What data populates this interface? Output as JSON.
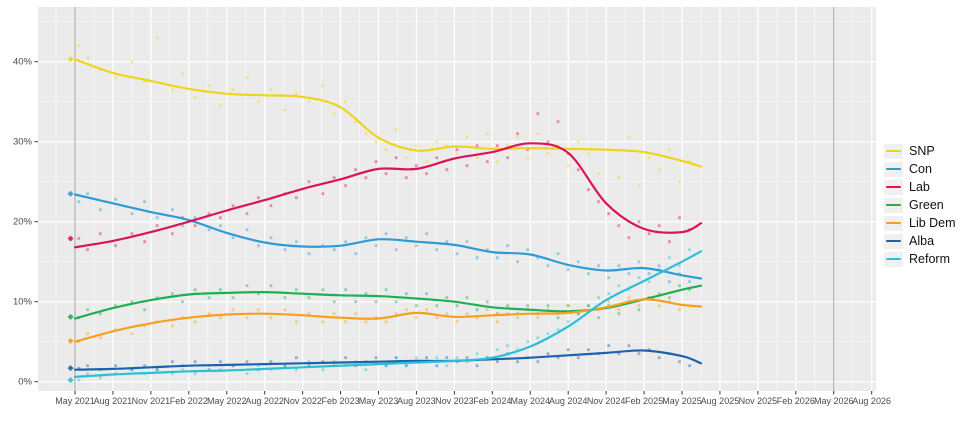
{
  "chart_data": {
    "type": "line+scatter",
    "title": "",
    "description": "Scottish Parliament voting intention poll tracker: scatter of individual polls with smoothed trend lines per party, election results marked May 2021, vertical guides at May 2021 and May 2026 elections",
    "x_axis": {
      "tick_labels": [
        "May 2021",
        "Aug 2021",
        "Nov 2021",
        "Feb 2022",
        "May 2022",
        "Aug 2022",
        "Nov 2022",
        "Feb 2023",
        "May 2023",
        "Aug 2023",
        "Nov 2023",
        "Feb 2024",
        "May 2024",
        "Aug 2024",
        "Nov 2024",
        "Feb 2025",
        "May 2025",
        "Aug 2025",
        "Nov 2025",
        "Feb 2026",
        "May 2026",
        "Aug 2026"
      ],
      "months_per_tick": 3,
      "total_months": 63,
      "grid": true
    },
    "y_axis": {
      "tick_labels": [
        "0%",
        "10%",
        "20%",
        "30%",
        "40%"
      ],
      "tick_values": [
        0,
        10,
        20,
        30,
        40
      ],
      "range_shown": [
        -1.2,
        46.8
      ],
      "grid": true
    },
    "election_vlines_months": [
      0,
      60
    ],
    "election_2021_results": [
      40.3,
      23.5,
      17.9,
      8.1,
      5.1,
      1.7,
      0.2
    ],
    "trend_months": [
      0,
      3,
      6,
      9,
      12,
      15,
      18,
      21,
      24,
      27,
      30,
      33,
      36,
      39,
      42,
      45,
      48,
      49.5
    ],
    "series": [
      {
        "name": "SNP",
        "color": "#EFD41F",
        "trend": [
          40.3,
          38.6,
          37.6,
          36.6,
          36.0,
          35.8,
          35.6,
          34.3,
          30.5,
          28.9,
          29.4,
          29.1,
          29.2,
          29.1,
          29.0,
          28.7,
          27.6,
          26.9
        ]
      },
      {
        "name": "Con",
        "color": "#2E9BD5",
        "trend": [
          23.4,
          22.3,
          21.2,
          20.2,
          18.6,
          17.4,
          16.9,
          17.0,
          17.8,
          17.5,
          17.1,
          16.2,
          15.9,
          14.6,
          13.9,
          14.2,
          13.3,
          12.9
        ]
      },
      {
        "name": "Lab",
        "color": "#DB145A",
        "trend": [
          16.8,
          17.6,
          18.7,
          20.0,
          21.4,
          22.7,
          24.1,
          25.3,
          26.6,
          26.6,
          27.9,
          28.7,
          29.8,
          28.6,
          22.3,
          19.1,
          18.7,
          19.8
        ]
      },
      {
        "name": "Green",
        "color": "#1FAE54",
        "trend": [
          7.9,
          9.2,
          10.2,
          10.9,
          11.1,
          11.2,
          11.0,
          10.8,
          10.7,
          10.4,
          10.0,
          9.3,
          9.0,
          8.8,
          9.2,
          10.3,
          11.5,
          12.0
        ]
      },
      {
        "name": "Lib Dem",
        "color": "#F5A01E",
        "trend": [
          5.0,
          6.3,
          7.3,
          8.0,
          8.4,
          8.5,
          8.3,
          8.0,
          7.9,
          8.6,
          8.1,
          8.3,
          8.5,
          8.6,
          9.3,
          10.3,
          9.6,
          9.4
        ]
      },
      {
        "name": "Alba",
        "color": "#1C63AE",
        "trend": [
          1.5,
          1.6,
          1.8,
          2.0,
          2.1,
          2.2,
          2.3,
          2.4,
          2.5,
          2.6,
          2.6,
          2.8,
          3.0,
          3.3,
          3.6,
          3.9,
          3.2,
          2.3
        ]
      },
      {
        "name": "Reform",
        "color": "#2BC0D4",
        "trend": [
          0.6,
          0.9,
          1.1,
          1.3,
          1.4,
          1.6,
          1.8,
          2.0,
          2.2,
          2.4,
          2.6,
          3.0,
          4.4,
          6.9,
          10.2,
          12.6,
          15.0,
          16.3
        ]
      }
    ],
    "polls": {
      "months": [
        0.3,
        1,
        2,
        3.2,
        4.5,
        5.5,
        6.5,
        7.7,
        8.5,
        9.5,
        10.6,
        11.5,
        12.5,
        13.6,
        14.5,
        15.5,
        16.6,
        17.5,
        18.5,
        19.6,
        20.5,
        21.4,
        22.2,
        23,
        23.8,
        24.6,
        25.4,
        26.2,
        27,
        27.8,
        28.6,
        29.4,
        30.2,
        31,
        31.8,
        32.6,
        33.4,
        34.2,
        35,
        35.8,
        36.6,
        37.4,
        38.2,
        39,
        39.8,
        40.6,
        41.4,
        42.2,
        43,
        43.8,
        44.6,
        45.4,
        46.2,
        47,
        47.8,
        48.6
      ],
      "SNP": [
        42,
        40.5,
        39,
        38,
        40,
        37.5,
        43,
        36.5,
        38.5,
        35.5,
        37,
        34.5,
        36.5,
        38,
        35,
        36.5,
        34,
        36,
        35,
        37,
        33.5,
        35,
        32.5,
        31,
        30,
        29,
        31.5,
        28,
        29.5,
        27.5,
        30,
        29.5,
        28.5,
        30.5,
        28,
        31,
        27.5,
        29.5,
        30.5,
        28,
        31,
        28.5,
        29.5,
        27,
        30,
        28.5,
        26,
        29,
        25.5,
        30.5,
        24.5,
        28,
        26.5,
        29,
        25,
        27.5
      ],
      "Con": [
        22.5,
        23.5,
        21.5,
        22.8,
        21,
        22.5,
        20.5,
        21.5,
        19.5,
        20.5,
        19,
        19.5,
        18,
        19,
        17,
        18,
        16.5,
        17.5,
        16,
        17,
        16.5,
        17.5,
        16,
        18,
        17,
        18.5,
        16.5,
        18,
        17,
        18.5,
        16.5,
        17.5,
        16,
        17.5,
        15.5,
        16.5,
        15.5,
        17,
        15,
        16.5,
        15.5,
        14.5,
        16,
        14,
        15,
        13.5,
        14.5,
        13,
        14.5,
        13.5,
        15,
        13.5,
        14.5,
        12.5,
        13.5,
        12.5
      ],
      "Lab": [
        17.9,
        16.5,
        18.5,
        17,
        18.5,
        17.5,
        19.5,
        18.5,
        20.5,
        19.5,
        21,
        20.5,
        22,
        21,
        23,
        22,
        23.5,
        23,
        25,
        23.5,
        25.5,
        24.5,
        26.5,
        25.5,
        27.5,
        26,
        28,
        25.5,
        27,
        26,
        28,
        26.5,
        29,
        27,
        29.5,
        27.5,
        29.5,
        28,
        31,
        29,
        33.5,
        30,
        32.5,
        28.5,
        26.5,
        24,
        22.5,
        21,
        19.5,
        18,
        20,
        18.5,
        19.5,
        17.5,
        20.5,
        19
      ],
      "Green": [
        8,
        9,
        8.5,
        9.5,
        10,
        9,
        10.5,
        11,
        10,
        11.5,
        10.5,
        11.5,
        10.5,
        12,
        11,
        12,
        10.5,
        11.5,
        10.5,
        11.5,
        10,
        11.5,
        10,
        11,
        10,
        11.5,
        10,
        11,
        9.5,
        11,
        9.5,
        10.5,
        9.5,
        10.5,
        9,
        10,
        8.5,
        9.5,
        8.5,
        9.5,
        8.5,
        9.5,
        8,
        9.5,
        8.5,
        9.5,
        8,
        9.5,
        8.5,
        10,
        9,
        10.5,
        11,
        10.5,
        12,
        11.5
      ],
      "Lib Dem": [
        5,
        6,
        5.5,
        6.5,
        6,
        7,
        7.5,
        7,
        8,
        7.5,
        8.5,
        8,
        9,
        8,
        9,
        8,
        9,
        7.5,
        8.5,
        7.5,
        8.5,
        7.5,
        8.5,
        7.5,
        8,
        7.5,
        8.5,
        9,
        8,
        9,
        8,
        8.5,
        7.5,
        8.5,
        8,
        9,
        7.5,
        8.5,
        8,
        9,
        8,
        9,
        8.5,
        9.5,
        8.5,
        9.5,
        9,
        10,
        9,
        10.5,
        9.5,
        10.5,
        9.5,
        10,
        9,
        9.5
      ],
      "Alba": [
        1.7,
        2,
        1.5,
        2,
        1.5,
        2,
        1.5,
        2.5,
        2,
        2.5,
        1.5,
        2.5,
        2,
        2.5,
        1.5,
        2.5,
        2,
        3,
        2,
        2.5,
        2,
        3,
        2,
        2.5,
        3,
        2,
        3,
        2,
        2.5,
        3,
        2,
        3,
        2.5,
        3,
        2,
        3,
        2.5,
        3.5,
        2.5,
        3,
        2.5,
        3.5,
        3,
        4,
        3,
        4,
        3.5,
        4.5,
        3.5,
        4.5,
        3.5,
        4,
        3,
        3.5,
        2.5,
        2
      ],
      "Reform": [
        0.2,
        1,
        0.5,
        1,
        1.5,
        1,
        1.5,
        1,
        1.5,
        1,
        2,
        1.5,
        2,
        1,
        2,
        1.5,
        2,
        1.5,
        2.5,
        1.5,
        2.5,
        2,
        2.5,
        1.5,
        2.5,
        2,
        3,
        2,
        3,
        2.5,
        3,
        2,
        3,
        2.5,
        3.5,
        3,
        4,
        4.5,
        4,
        5,
        5.5,
        6,
        6.5,
        7.5,
        8.5,
        9.5,
        10.5,
        11,
        12,
        11.5,
        13,
        12.5,
        14,
        15.5,
        14.5,
        16.5
      ]
    },
    "legend_position": "right",
    "colors": {
      "panel_background": "#EBEBEB",
      "gridline": "#FFFFFF",
      "axis_text": "#4D4D4D",
      "election_vline": "#A3A3A3"
    }
  }
}
